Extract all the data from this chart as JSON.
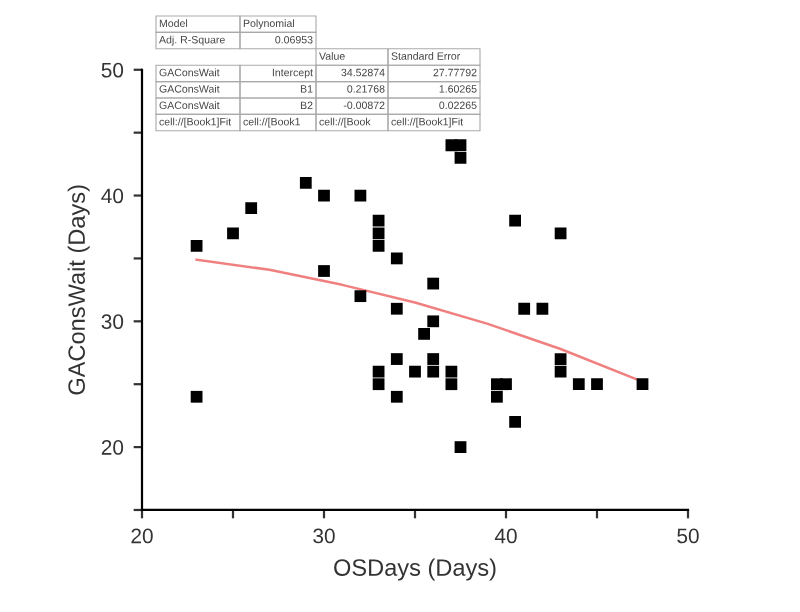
{
  "chart_data": {
    "type": "scatter",
    "xlabel": "OSDays (Days)",
    "ylabel": "GAConsWait (Days)",
    "xlim": [
      20,
      50
    ],
    "ylim": [
      15,
      50
    ],
    "xticks": [
      20,
      {
        "value": 25,
        "label": null
      },
      30,
      {
        "value": 35,
        "label": null
      },
      40,
      {
        "value": 45,
        "label": null
      },
      50
    ],
    "yticks": [
      {
        "value": 15,
        "label": null
      },
      20,
      {
        "value": 25,
        "label": null
      },
      30,
      {
        "value": 35,
        "label": null
      },
      40,
      {
        "value": 45,
        "label": null
      },
      50
    ],
    "grid": false,
    "marker": "square",
    "series": [
      {
        "color": "#000000",
        "x": [
          23,
          23,
          25,
          26,
          29,
          30,
          30,
          32,
          32,
          33,
          33,
          33,
          33,
          33,
          34,
          34,
          34,
          34,
          35,
          35.5,
          36,
          36,
          36,
          36,
          37,
          37,
          37,
          37.5,
          37.5,
          40.5,
          43,
          41,
          42,
          39.5,
          40,
          39.5,
          40.5,
          37.5,
          43,
          43,
          44,
          45,
          47.5
        ],
        "values": [
          36,
          24,
          37,
          39,
          41,
          40,
          34,
          40,
          32,
          38,
          37,
          36,
          26,
          25,
          35,
          31,
          27,
          24,
          26,
          29,
          33,
          30,
          27,
          26,
          26,
          25,
          44,
          44,
          43,
          38,
          37,
          31,
          31,
          25,
          25,
          24,
          22,
          20,
          27,
          26,
          25,
          25,
          25
        ]
      },
      {
        "type": "line",
        "color": "#f08080",
        "marker": "none",
        "x": [
          23,
          27,
          31,
          35,
          39,
          43,
          47.5
        ],
        "values": [
          34.9,
          34.1,
          32.9,
          31.5,
          29.8,
          27.8,
          25.2
        ]
      }
    ],
    "annotations": [
      "Model",
      "Polynomial",
      "Adj. R-Square",
      "0.06953",
      "Value",
      "Standard Error",
      "GAConsWait",
      "Intercept",
      "34.52874",
      "27.77792",
      "GAConsWait",
      "B1",
      "0.21768",
      "1.60265",
      "GAConsWait",
      "B2",
      "-0.00872",
      "0.02265",
      "cell://[Book1]Fit",
      "cell://[Book1",
      "cell://[Book",
      "cell://[Book1]Fit"
    ]
  }
}
